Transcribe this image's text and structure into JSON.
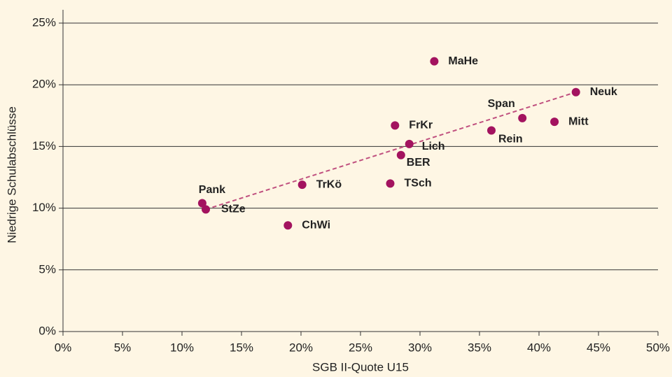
{
  "chart_data": {
    "type": "scatter",
    "x_label": "SGB II-Quote U15",
    "y_label": "Niedrige Schulabschlüsse",
    "color": "#a3135f",
    "trend_color": "#c0507f",
    "grid": true,
    "points": {
      "labels": [
        "MaHe",
        "Neuk",
        "Span",
        "Mitt",
        "Rein",
        "FrKr",
        "Lich",
        "BER",
        "TSch",
        "TrKö",
        "Pank",
        "StZe",
        "ChWi"
      ],
      "x": [
        31.2,
        43.1,
        38.6,
        41.3,
        36.0,
        27.9,
        29.1,
        28.4,
        27.5,
        20.1,
        11.7,
        12.0,
        18.9
      ],
      "y": [
        21.9,
        19.4,
        17.3,
        17.0,
        16.3,
        16.7,
        15.2,
        14.3,
        12.0,
        11.9,
        10.4,
        9.9,
        8.6
      ]
    },
    "trend": {
      "x": [
        12.0,
        43.1
      ],
      "y": [
        9.9,
        19.4
      ]
    },
    "xlim": [
      0,
      50
    ],
    "ylim": [
      0,
      25
    ],
    "xticks": [
      {
        "value": 0,
        "label": "0%"
      },
      {
        "value": 5,
        "label": "5%"
      },
      {
        "value": 10,
        "label": "10%"
      },
      {
        "value": 15,
        "label": "15%"
      },
      {
        "value": 20,
        "label": "20%"
      },
      {
        "value": 25,
        "label": "25%"
      },
      {
        "value": 30,
        "label": "30%"
      },
      {
        "value": 35,
        "label": "35%"
      },
      {
        "value": 40,
        "label": "40%"
      },
      {
        "value": 45,
        "label": "45%"
      },
      {
        "value": 50,
        "label": "50%"
      }
    ],
    "yticks": [
      {
        "value": 0,
        "label": "0%"
      },
      {
        "value": 5,
        "label": "5%"
      },
      {
        "value": 10,
        "label": "10%"
      },
      {
        "value": 15,
        "label": "15%"
      },
      {
        "value": 20,
        "label": "20%"
      },
      {
        "value": 25,
        "label": "25%"
      }
    ]
  }
}
